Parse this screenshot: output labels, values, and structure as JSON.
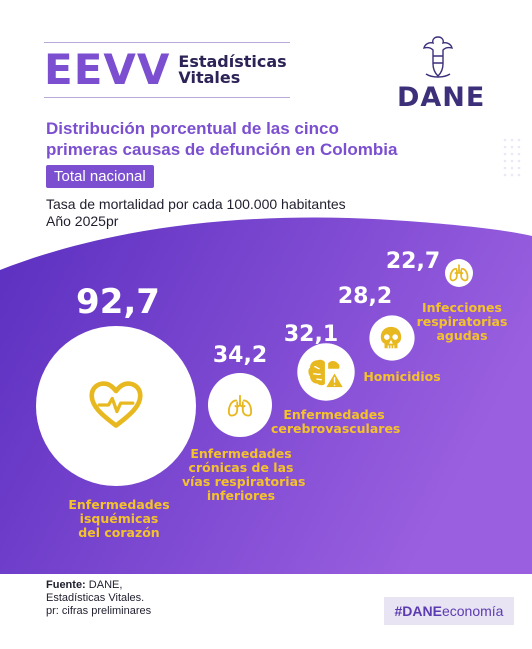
{
  "header": {
    "brand_acronym": "EEVV",
    "brand_line1": "Estadísticas",
    "brand_line2": "Vitales",
    "org_logo": "DANE"
  },
  "title": {
    "line1": "Distribución porcentual de las cinco",
    "line2": "primeras causas de defunción en Colombia"
  },
  "scope_pill": "Total nacional",
  "subtitle": {
    "line1": "Tasa de mortalidad por cada 100.000 habitantes",
    "line2": "Año 2025pr"
  },
  "chart_data": {
    "type": "bubble",
    "categories": [
      "Enfermedades isquémicas del corazón",
      "Enfermedades crónicas de las vías respiratorias inferiores",
      "Enfermedades cerebrovasculares",
      "Homicidios",
      "Infecciones respiratorias agudas"
    ],
    "values": [
      92.7,
      34.2,
      32.1,
      28.2,
      22.7
    ],
    "value_labels": [
      "92,7",
      "34,2",
      "32,1",
      "28,2",
      "22,7"
    ],
    "label_lines": [
      [
        "Enfermedades",
        "isquémicas",
        "del corazón"
      ],
      [
        "Enfermedades",
        "crónicas de las",
        "vías respiratorias",
        "inferiores"
      ],
      [
        "Enfermedades",
        "cerebrovasculares"
      ],
      [
        "Homicidios"
      ],
      [
        "Infecciones",
        "respiratorias",
        "agudas"
      ]
    ],
    "icons": [
      "heart-pulse-icon",
      "lungs-icon",
      "brain-warning-icon",
      "skull-icon",
      "lungs-icon"
    ],
    "colors": {
      "background_gradient": [
        "#5b2fc0",
        "#9a5fe0"
      ],
      "label": "#f4c22a",
      "value": "#ffffff",
      "bubble": "#ffffff",
      "icon": "#e8b820"
    }
  },
  "footer": {
    "source_label": "Fuente:",
    "source_line1": "DANE,",
    "source_line2": "Estadísticas Vitales.",
    "source_line3": "pr: cifras preliminares",
    "hashtag_bold": "#DANE",
    "hashtag_rest": "economía"
  }
}
